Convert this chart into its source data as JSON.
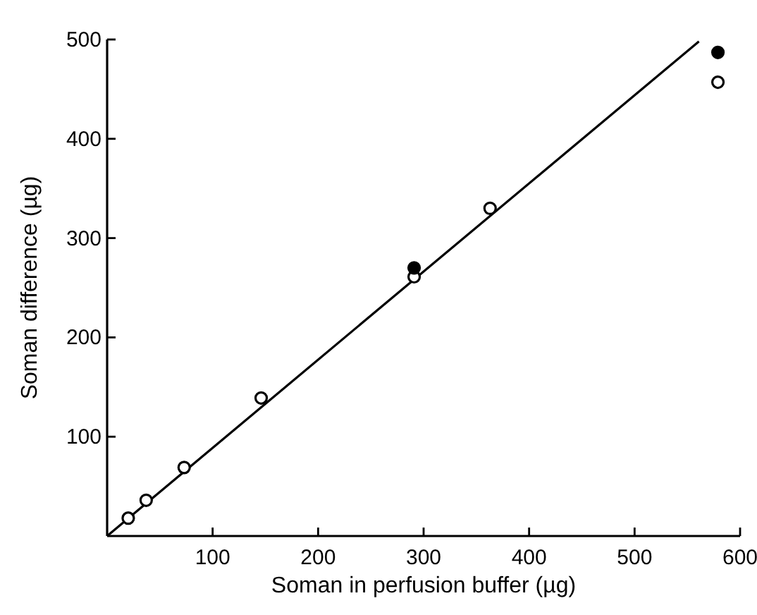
{
  "chart_data": {
    "type": "scatter",
    "xlabel": "Soman in perfusion buffer (µg)",
    "ylabel": "Soman difference (µg)",
    "xlim": [
      0,
      600
    ],
    "ylim": [
      0,
      500
    ],
    "xticks": [
      100,
      200,
      300,
      400,
      500,
      600
    ],
    "yticks": [
      100,
      200,
      300,
      400,
      500
    ],
    "grid": false,
    "marker": "circle",
    "series": [
      {
        "type": "line",
        "marker": "none",
        "color": "#000000",
        "x": [
          0,
          561
        ],
        "values": [
          0,
          498
        ]
      },
      {
        "color": "#ffffff",
        "x": [
          20,
          37,
          73,
          146,
          291,
          363,
          579
        ],
        "values": [
          18,
          36,
          69,
          139,
          261,
          330,
          457
        ]
      },
      {
        "color": "#000000",
        "x": [
          291,
          579
        ],
        "values": [
          270,
          487
        ]
      }
    ]
  }
}
